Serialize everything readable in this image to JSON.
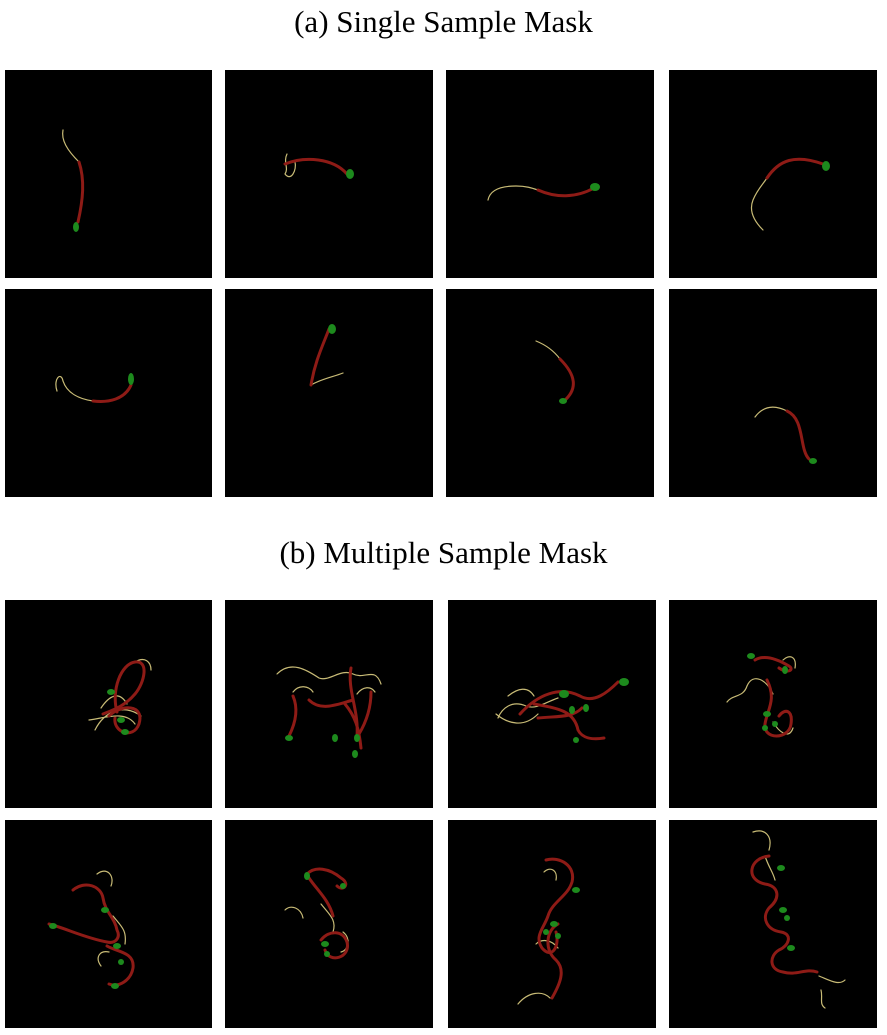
{
  "section_a": {
    "title": "(a) Single Sample Mask",
    "panels": 8
  },
  "section_b": {
    "title": "(b) Multiple Sample Mask",
    "panels": 8
  },
  "colors": {
    "background": "#000000",
    "root": "#8e1b16",
    "hypocotyl": "#c8bb76",
    "seed": "#1d8a1d",
    "page": "#ffffff"
  }
}
